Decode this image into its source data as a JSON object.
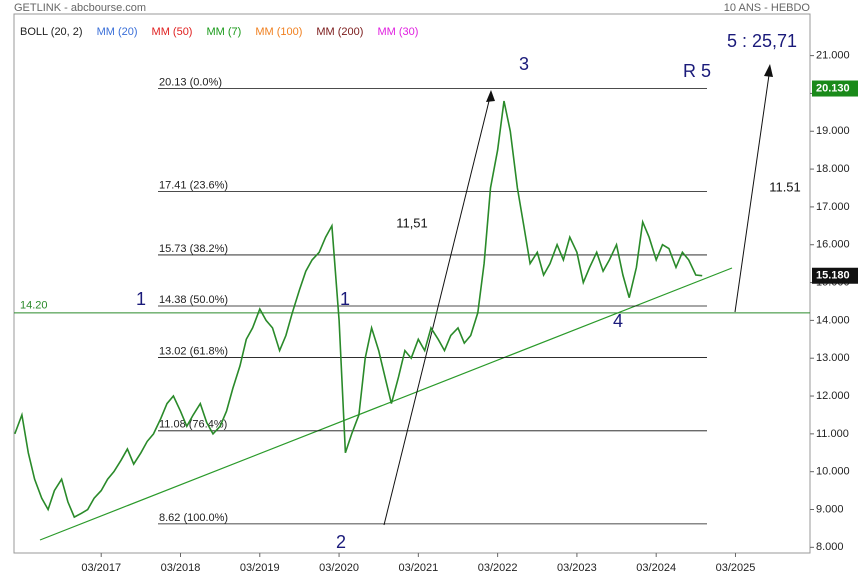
{
  "chart_data": {
    "type": "line",
    "header_left": "GETLINK - abcbourse.com",
    "header_right": "10 ANS - HEBDO",
    "indicators": [
      {
        "label": "BOLL (20, 2)",
        "color": "#222222"
      },
      {
        "label": "MM (20)",
        "color": "#3a6fd8"
      },
      {
        "label": "MM (50)",
        "color": "#e02020"
      },
      {
        "label": "MM (7)",
        "color": "#1a9a1a"
      },
      {
        "label": "MM (100)",
        "color": "#f08020"
      },
      {
        "label": "MM (200)",
        "color": "#7a1a1a"
      },
      {
        "label": "MM (30)",
        "color": "#e020e0"
      }
    ],
    "series": [
      {
        "color": "#2a8a2a",
        "x": [
          2016.08,
          2016.17,
          2016.25,
          2016.33,
          2016.42,
          2016.5,
          2016.58,
          2016.67,
          2016.75,
          2016.83,
          2016.92,
          2017.0,
          2017.08,
          2017.17,
          2017.25,
          2017.33,
          2017.42,
          2017.5,
          2017.58,
          2017.67,
          2017.75,
          2017.83,
          2017.92,
          2018.0,
          2018.08,
          2018.17,
          2018.25,
          2018.33,
          2018.42,
          2018.5,
          2018.58,
          2018.67,
          2018.75,
          2018.83,
          2018.92,
          2019.0,
          2019.08,
          2019.17,
          2019.25,
          2019.33,
          2019.42,
          2019.5,
          2019.58,
          2019.67,
          2019.75,
          2019.83,
          2019.92,
          2020.0,
          2020.08,
          2020.17,
          2020.25,
          2020.33,
          2020.42,
          2020.5,
          2020.58,
          2020.67,
          2020.75,
          2020.83,
          2020.92,
          2021.0,
          2021.08,
          2021.17,
          2021.25,
          2021.33,
          2021.42,
          2021.5,
          2021.58,
          2021.67,
          2021.75,
          2021.83,
          2021.92,
          2022.0,
          2022.08,
          2022.17,
          2022.25,
          2022.33,
          2022.42,
          2022.5,
          2022.58,
          2022.67,
          2022.75,
          2022.83,
          2022.92,
          2023.0,
          2023.08,
          2023.17,
          2023.25,
          2023.33,
          2023.42,
          2023.5,
          2023.58,
          2023.67,
          2023.75,
          2023.83,
          2023.92,
          2024.0,
          2024.08,
          2024.17,
          2024.25,
          2024.33,
          2024.42,
          2024.5,
          2024.58,
          2024.67,
          2024.75
        ],
        "values": [
          11.0,
          11.5,
          10.5,
          9.8,
          9.3,
          9.0,
          9.5,
          9.8,
          9.2,
          8.8,
          8.9,
          9.0,
          9.3,
          9.5,
          9.8,
          10.0,
          10.3,
          10.6,
          10.2,
          10.5,
          10.8,
          11.0,
          11.4,
          11.8,
          12.0,
          11.6,
          11.2,
          11.5,
          11.8,
          11.3,
          11.0,
          11.2,
          11.6,
          12.2,
          12.8,
          13.5,
          13.8,
          14.3,
          14.0,
          13.8,
          13.2,
          13.6,
          14.2,
          14.8,
          15.3,
          15.6,
          15.8,
          16.2,
          16.5,
          14.0,
          10.5,
          11.0,
          11.5,
          13.0,
          13.8,
          13.2,
          12.5,
          11.8,
          12.5,
          13.2,
          13.0,
          13.5,
          13.2,
          13.8,
          13.5,
          13.2,
          13.6,
          13.8,
          13.4,
          13.6,
          14.2,
          15.5,
          17.5,
          18.5,
          19.8,
          19.0,
          17.5,
          16.5,
          15.5,
          15.8,
          15.2,
          15.5,
          16.0,
          15.6,
          16.2,
          15.8,
          15.0,
          15.4,
          15.8,
          15.3,
          15.6,
          16.0,
          15.2,
          14.6,
          15.4,
          16.6,
          16.2,
          15.6,
          16.0,
          15.9,
          15.4,
          15.8,
          15.6,
          15.2,
          15.18
        ]
      }
    ],
    "xlim": [
      2016.07,
      2026.11
    ],
    "xticks": [
      {
        "value": 2017.17,
        "label": "03/2017"
      },
      {
        "value": 2018.17,
        "label": "03/2018"
      },
      {
        "value": 2019.17,
        "label": "03/2019"
      },
      {
        "value": 2020.17,
        "label": "03/2020"
      },
      {
        "value": 2021.17,
        "label": "03/2021"
      },
      {
        "value": 2022.17,
        "label": "03/2022"
      },
      {
        "value": 2023.17,
        "label": "03/2023"
      },
      {
        "value": 2024.17,
        "label": "03/2024"
      },
      {
        "value": 2025.17,
        "label": "03/2025"
      }
    ],
    "ylim": [
      7.85,
      22.1
    ],
    "yticks": [
      {
        "value": 8,
        "label": "8.000"
      },
      {
        "value": 9,
        "label": "9.000"
      },
      {
        "value": 10,
        "label": "10.000"
      },
      {
        "value": 11,
        "label": "11.000"
      },
      {
        "value": 12,
        "label": "12.000"
      },
      {
        "value": 13,
        "label": "13.000"
      },
      {
        "value": 14,
        "label": "14.000"
      },
      {
        "value": 15,
        "label": "15.000"
      },
      {
        "value": 16,
        "label": "16.000"
      },
      {
        "value": 17,
        "label": "17.000"
      },
      {
        "value": 18,
        "label": "18.000"
      },
      {
        "value": 19,
        "label": "19.000"
      },
      {
        "value": 20,
        "label": "20.000"
      },
      {
        "value": 21,
        "label": "21.000"
      }
    ],
    "fib_levels": [
      {
        "value": 20.13,
        "label": "20.13  (0.0%)"
      },
      {
        "value": 17.41,
        "label": "17.41  (23.6%)"
      },
      {
        "value": 15.73,
        "label": "15.73  (38.2%)"
      },
      {
        "value": 14.38,
        "label": "14.38  (50.0%)"
      },
      {
        "value": 13.02,
        "label": "13.02  (61.8%)"
      },
      {
        "value": 11.08,
        "label": "11.08  (76.4%)"
      },
      {
        "value": 8.62,
        "label": "8.62  (100.0%)"
      }
    ],
    "support_line": {
      "value": 14.2,
      "label": "14.20",
      "color": "#2a8a2a"
    },
    "price_tags": [
      {
        "value": 20.13,
        "label": "20.130",
        "color": "#1a8a1a"
      },
      {
        "value": 15.18,
        "label": "15.180",
        "color": "#111111"
      }
    ],
    "annotations": [
      "1",
      "1",
      "2",
      "3",
      "4",
      "R 5",
      "5 : 25,71",
      "11,51",
      "11.51"
    ]
  }
}
